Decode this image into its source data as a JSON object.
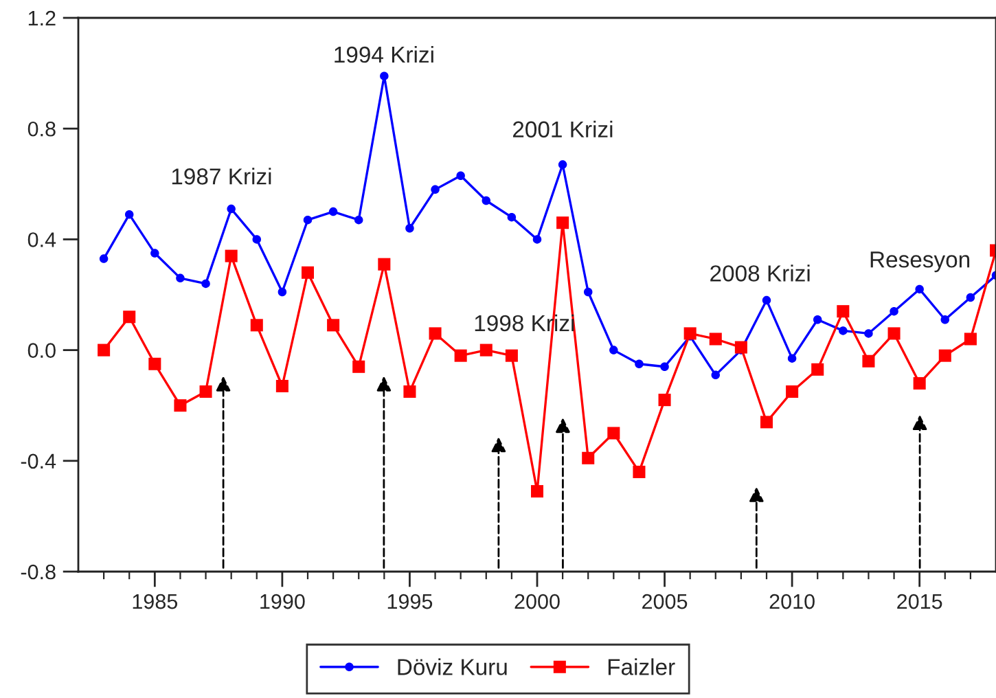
{
  "chart_data": {
    "type": "line",
    "x": [
      1983,
      1984,
      1985,
      1986,
      1987,
      1988,
      1989,
      1990,
      1991,
      1992,
      1993,
      1994,
      1995,
      1996,
      1997,
      1998,
      1999,
      2000,
      2001,
      2002,
      2003,
      2004,
      2005,
      2006,
      2007,
      2008,
      2009,
      2010,
      2011,
      2012,
      2013,
      2014,
      2015,
      2016,
      2017,
      2018
    ],
    "series": [
      {
        "name": "Döviz Kuru",
        "color": "#0000ff",
        "marker": "circle",
        "values": [
          0.33,
          0.49,
          0.35,
          0.26,
          0.24,
          0.51,
          0.4,
          0.21,
          0.47,
          0.5,
          0.47,
          0.99,
          0.44,
          0.58,
          0.63,
          0.54,
          0.48,
          0.4,
          0.67,
          0.21,
          0.0,
          -0.05,
          -0.06,
          0.05,
          -0.09,
          0.0,
          0.18,
          -0.03,
          0.11,
          0.07,
          0.06,
          0.14,
          0.22,
          0.11,
          0.19,
          0.27
        ]
      },
      {
        "name": "Faizler",
        "color": "#ff0000",
        "marker": "square",
        "values": [
          0.0,
          0.12,
          -0.05,
          -0.2,
          -0.15,
          0.34,
          0.09,
          -0.13,
          0.28,
          0.09,
          -0.06,
          0.31,
          -0.15,
          0.06,
          -0.02,
          0.0,
          -0.02,
          -0.51,
          0.46,
          -0.39,
          -0.3,
          -0.44,
          -0.18,
          0.06,
          0.04,
          0.01,
          -0.26,
          -0.15,
          -0.07,
          0.14,
          -0.04,
          0.06,
          -0.12,
          -0.02,
          0.04,
          0.36
        ]
      }
    ],
    "xlim": [
      1982,
      2018
    ],
    "xticks": [
      {
        "value": 1983,
        "label": null
      },
      {
        "value": 1984,
        "label": null
      },
      1985,
      {
        "value": 1986,
        "label": null
      },
      {
        "value": 1987,
        "label": null
      },
      {
        "value": 1988,
        "label": null
      },
      {
        "value": 1989,
        "label": null
      },
      1990,
      {
        "value": 1991,
        "label": null
      },
      {
        "value": 1992,
        "label": null
      },
      {
        "value": 1993,
        "label": null
      },
      {
        "value": 1994,
        "label": null
      },
      1995,
      {
        "value": 1996,
        "label": null
      },
      {
        "value": 1997,
        "label": null
      },
      {
        "value": 1998,
        "label": null
      },
      {
        "value": 1999,
        "label": null
      },
      2000,
      {
        "value": 2001,
        "label": null
      },
      {
        "value": 2002,
        "label": null
      },
      {
        "value": 2003,
        "label": null
      },
      {
        "value": 2004,
        "label": null
      },
      2005,
      {
        "value": 2006,
        "label": null
      },
      {
        "value": 2007,
        "label": null
      },
      {
        "value": 2008,
        "label": null
      },
      {
        "value": 2009,
        "label": null
      },
      2010,
      {
        "value": 2011,
        "label": null
      },
      {
        "value": 2012,
        "label": null
      },
      {
        "value": 2013,
        "label": null
      },
      {
        "value": 2014,
        "label": null
      },
      2015,
      {
        "value": 2016,
        "label": null
      },
      {
        "value": 2017,
        "label": null
      }
    ],
    "ylim": [
      -0.8,
      1.2
    ],
    "yticks": [
      -0.8,
      -0.4,
      {
        "value": 0,
        "label": "0.0"
      },
      0.4,
      0.8,
      1.2
    ],
    "annotations": [
      "1987 Krizi",
      "1994 Krizi",
      "1998 Krizi",
      "2001 Krizi",
      "2008 Krizi",
      "Resesyon"
    ],
    "grid": false,
    "legend": "bottom"
  }
}
